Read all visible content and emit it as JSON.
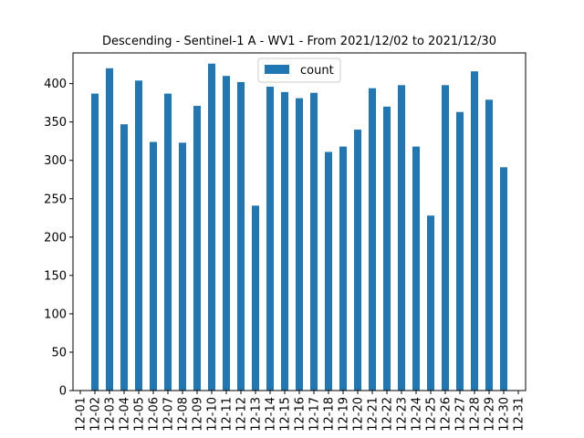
{
  "chart_data": {
    "type": "bar",
    "title": "Descending - Sentinel-1 A - WV1 - From 2021/12/02 to 2021/12/30",
    "xlabel": "",
    "ylabel": "",
    "categories": [
      "12-01",
      "12-02",
      "12-03",
      "12-04",
      "12-05",
      "12-06",
      "12-07",
      "12-08",
      "12-09",
      "12-10",
      "12-11",
      "12-12",
      "12-13",
      "12-14",
      "12-15",
      "12-16",
      "12-17",
      "12-18",
      "12-19",
      "12-20",
      "12-21",
      "12-22",
      "12-23",
      "12-24",
      "12-25",
      "12-26",
      "12-27",
      "12-28",
      "12-29",
      "12-30",
      "12-31"
    ],
    "series": [
      {
        "name": "count",
        "color": "#1f77b4",
        "values": [
          null,
          387,
          420,
          347,
          404,
          324,
          387,
          323,
          371,
          426,
          410,
          402,
          241,
          396,
          389,
          381,
          388,
          311,
          318,
          340,
          394,
          370,
          398,
          318,
          228,
          398,
          363,
          416,
          379,
          291,
          null
        ]
      }
    ],
    "ylim": [
      0,
      440
    ],
    "yticks": [
      0,
      50,
      100,
      150,
      200,
      250,
      300,
      350,
      400
    ],
    "grid": false,
    "legend": "top-center"
  }
}
